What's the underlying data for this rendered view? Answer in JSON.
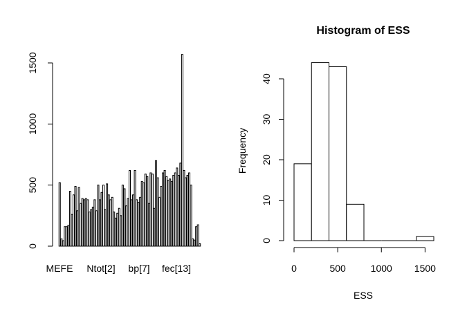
{
  "chart_data": [
    {
      "type": "bar",
      "title": "",
      "xlabel": "",
      "ylabel": "",
      "ylim": [
        0,
        1600
      ],
      "yticks": [
        0,
        500,
        1000,
        1500
      ],
      "category_labels_shown": [
        "MEFE",
        "Ntot[2]",
        "bp[7]",
        "fec[13]"
      ],
      "values": [
        520,
        60,
        45,
        160,
        160,
        170,
        450,
        260,
        420,
        490,
        290,
        480,
        350,
        390,
        380,
        390,
        380,
        280,
        300,
        320,
        380,
        290,
        500,
        380,
        440,
        500,
        300,
        510,
        420,
        380,
        400,
        280,
        230,
        270,
        310,
        250,
        500,
        470,
        330,
        390,
        620,
        380,
        420,
        620,
        380,
        360,
        400,
        530,
        520,
        590,
        570,
        350,
        600,
        590,
        310,
        700,
        560,
        400,
        490,
        600,
        620,
        570,
        540,
        550,
        530,
        580,
        600,
        640,
        580,
        680,
        1570,
        620,
        560,
        580,
        600,
        500,
        60,
        50,
        160,
        175,
        20
      ]
    },
    {
      "type": "histogram",
      "title": "Histogram of ESS",
      "xlabel": "ESS",
      "ylabel": "Frequency",
      "xticks": [
        0,
        500,
        1000,
        1500
      ],
      "yticks": [
        0,
        10,
        20,
        30,
        40
      ],
      "xlim": [
        0,
        1600
      ],
      "ylim": [
        0,
        44
      ],
      "bin_edges": [
        0,
        200,
        400,
        600,
        800,
        1000,
        1200,
        1400,
        1600
      ],
      "counts": [
        19,
        44,
        43,
        9,
        0,
        0,
        0,
        1
      ]
    }
  ]
}
